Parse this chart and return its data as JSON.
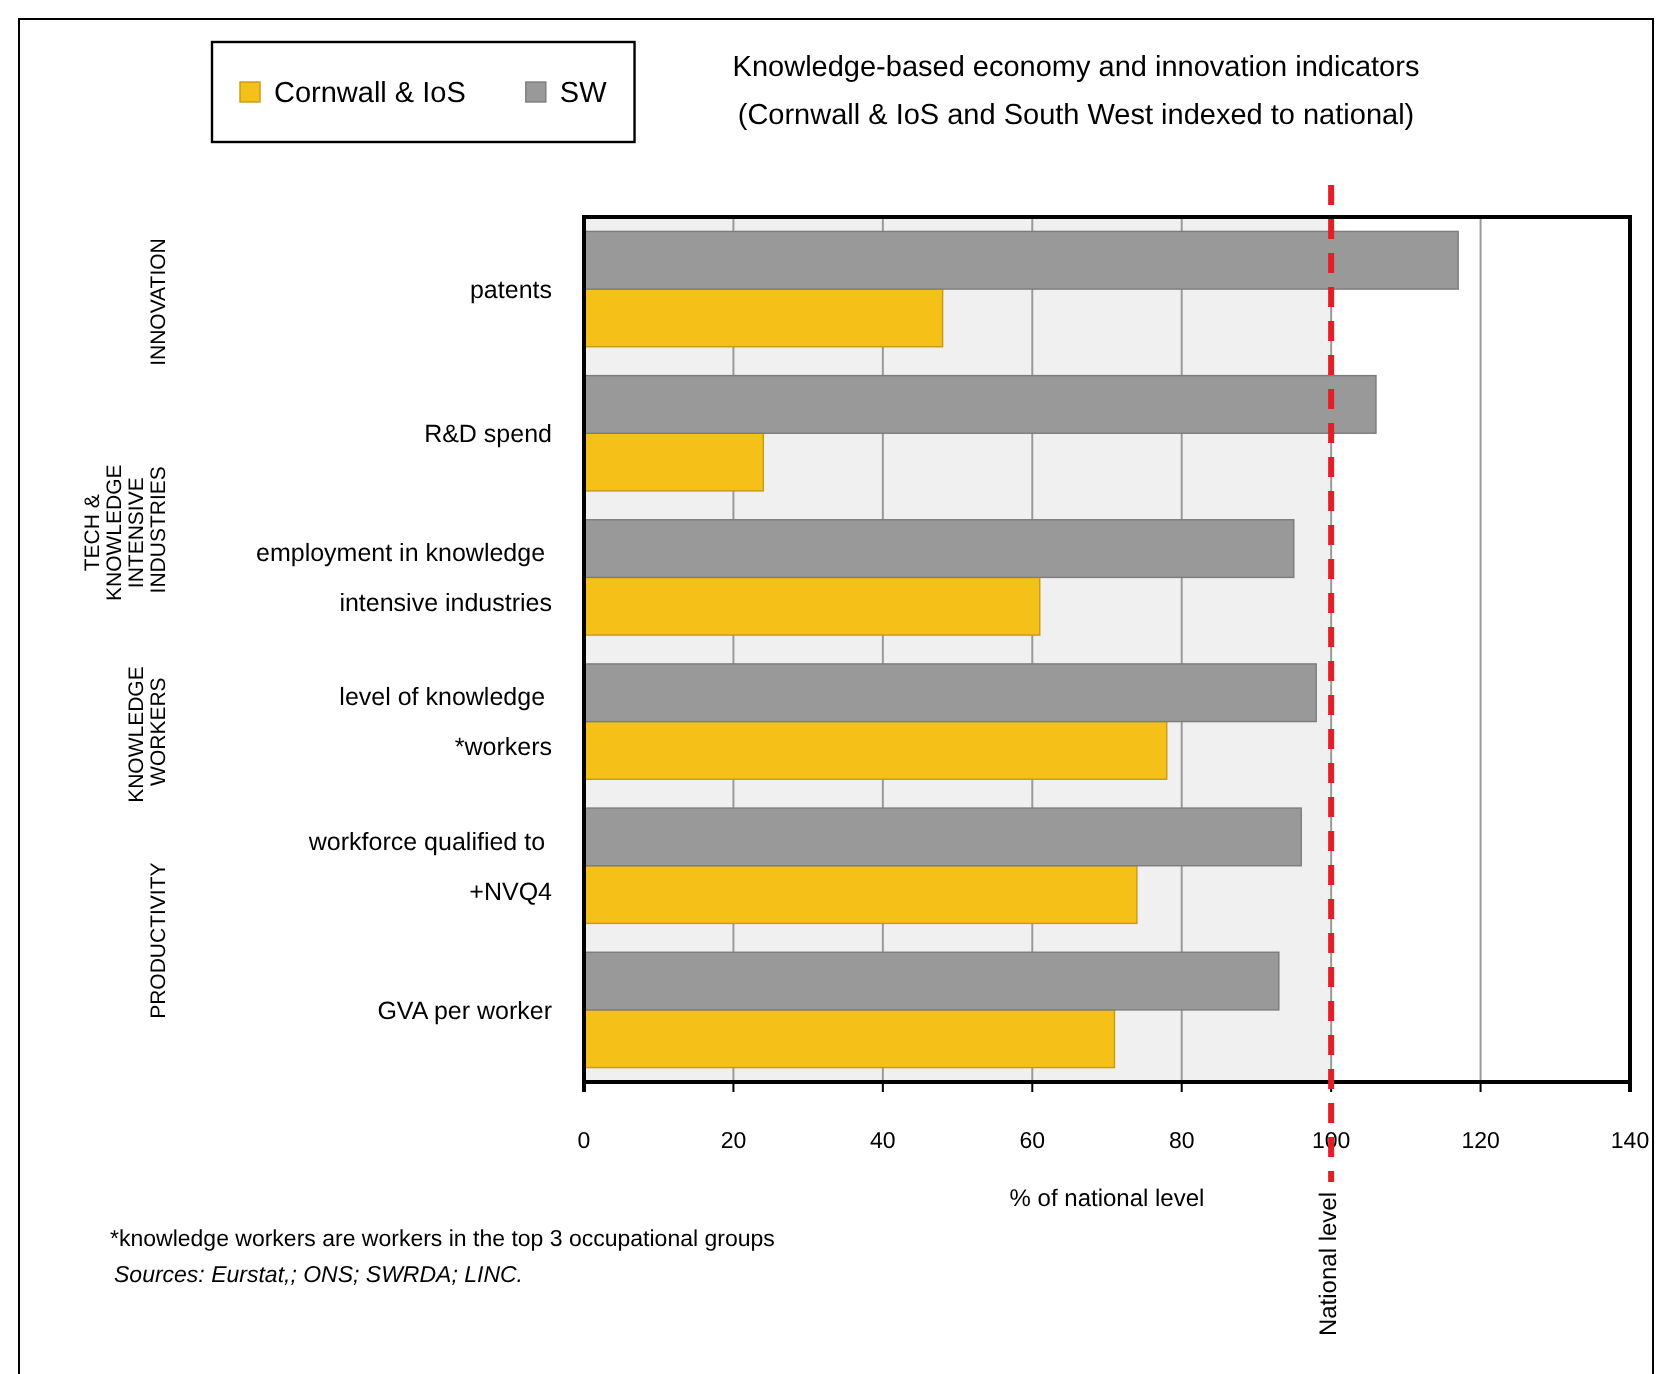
{
  "chart_data": {
    "type": "bar",
    "orientation": "horizontal",
    "title": "Knowledge-based economy and innovation indicators",
    "subtitle": "(Cornwall & IoS and South West indexed to national)",
    "xlabel": "% of national level",
    "categories": [
      "patents",
      "R&D spend",
      "employment in knowledge\nintensive industries",
      "level of knowledge\n*workers",
      "workforce qualified to\n+NVQ4",
      "GVA per worker"
    ],
    "series": [
      {
        "name": "Cornwall & IoS",
        "color": "#f5c017",
        "values": [
          48,
          24,
          61,
          78,
          74,
          71
        ]
      },
      {
        "name": "SW",
        "color": "#999999",
        "values": [
          117,
          106,
          95,
          98,
          96,
          93
        ]
      }
    ],
    "xlim": [
      0,
      140
    ],
    "xticks": [
      0,
      20,
      40,
      60,
      80,
      100,
      120,
      140
    ],
    "grid": "x",
    "legend": "top left",
    "ref_lines": [
      {
        "axis": "x",
        "value": 100,
        "label": "National level",
        "color": "#e31e24",
        "line_style": "dashed"
      }
    ],
    "bands": [
      {
        "axis": "x",
        "from": 0,
        "to": 100,
        "color": "#f0f0f0"
      }
    ],
    "annotations": [
      "INNOVATION",
      "TECH &\nKNOWLEDGE\nINTENSIVE\nINDUSTRIES",
      "KNOWLEDGE\nWORKERS",
      "PRODUCTIVITY",
      "*knowledge workers are workers in the top 3 occupational groups",
      "Sources: Eurstat,; ONS; SWRDA; LINC."
    ]
  }
}
